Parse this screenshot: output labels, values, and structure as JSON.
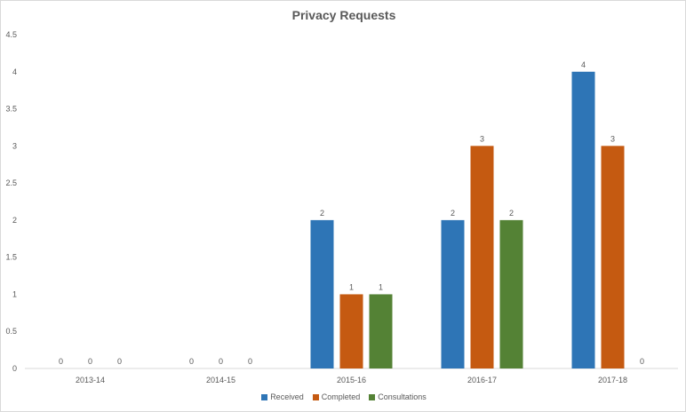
{
  "chart_data": {
    "type": "bar",
    "title": "Privacy Requests",
    "categories": [
      "2013-14",
      "2014-15",
      "2015-16",
      "2016-17",
      "2017-18"
    ],
    "series": [
      {
        "name": "Received",
        "values": [
          0,
          0,
          2,
          2,
          4
        ],
        "color": "#2e75b6"
      },
      {
        "name": "Completed",
        "values": [
          0,
          0,
          1,
          3,
          3
        ],
        "color": "#c55a11"
      },
      {
        "name": "Consultations",
        "values": [
          0,
          0,
          1,
          2,
          0
        ],
        "color": "#548235"
      }
    ],
    "ylim": [
      0,
      4.5
    ],
    "yticks": [
      "0",
      "0.5",
      "1",
      "1.5",
      "2",
      "2.5",
      "3",
      "3.5",
      "4",
      "4.5"
    ],
    "grid": false,
    "legend_position": "bottom",
    "data_labels": true
  }
}
